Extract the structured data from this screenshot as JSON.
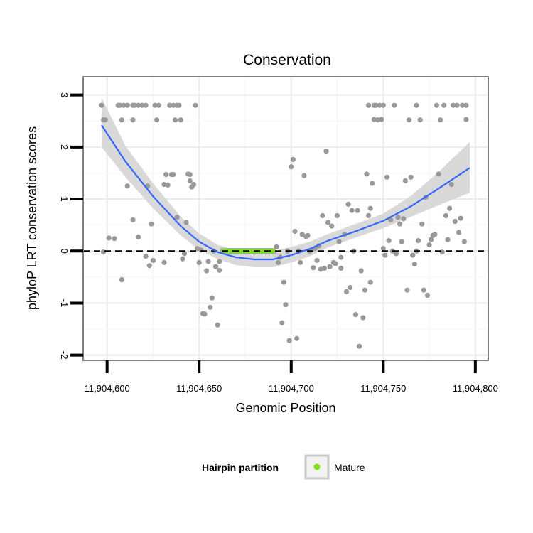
{
  "chart_data": {
    "type": "scatter",
    "title": "Conservation",
    "xlabel": "Genomic Position",
    "ylabel": "phyloP LRT conservation scores",
    "xlim": [
      11904587,
      11904807
    ],
    "ylim": [
      -2.1,
      3.35
    ],
    "x_ticks": [
      11904600,
      11904650,
      11904700,
      11904750,
      11904800
    ],
    "x_tick_labels": [
      "11,904,600",
      "11,904,650",
      "11,904,700",
      "11,904,750",
      "11,904,800"
    ],
    "y_ticks": [
      -2,
      -1,
      0,
      1,
      2,
      3
    ],
    "y_tick_labels": [
      "-2",
      "-1",
      "0",
      "1",
      "2",
      "3"
    ],
    "reference_line": {
      "y": 0,
      "style": "dashed",
      "color": "#000000"
    },
    "colors": {
      "points": "#999999",
      "smooth_line": "#3366ff",
      "confidence_band": "#d9d9d9",
      "mature": "#7fe01a",
      "panel_border": "#7f7f7f",
      "grid": "#ebebeb"
    },
    "points": [
      [
        11904597,
        2.8
      ],
      [
        11904598,
        2.52
      ],
      [
        11904599,
        2.52
      ],
      [
        11904598,
        -0.02
      ],
      [
        11904601,
        0.25
      ],
      [
        11904604,
        0.24
      ],
      [
        11904606,
        2.8
      ],
      [
        11904607,
        2.8
      ],
      [
        11904608,
        2.52
      ],
      [
        11904608,
        -0.55
      ],
      [
        11904609,
        2.8
      ],
      [
        11904611,
        2.8
      ],
      [
        11904611,
        1.25
      ],
      [
        11904614,
        2.8
      ],
      [
        11904614,
        2.52
      ],
      [
        11904614,
        0.6
      ],
      [
        11904615,
        2.8
      ],
      [
        11904617,
        2.8
      ],
      [
        11904617,
        0.27
      ],
      [
        11904619,
        2.8
      ],
      [
        11904621,
        2.8
      ],
      [
        11904621,
        -0.1
      ],
      [
        11904622,
        1.25
      ],
      [
        11904623,
        -0.28
      ],
      [
        11904624,
        0.52
      ],
      [
        11904625,
        -0.18
      ],
      [
        11904626,
        2.8
      ],
      [
        11904627,
        2.52
      ],
      [
        11904628,
        2.8
      ],
      [
        11904631,
        1.28
      ],
      [
        11904631,
        -0.22
      ],
      [
        11904632,
        1.47
      ],
      [
        11904633,
        1.27
      ],
      [
        11904634,
        2.8
      ],
      [
        11904635,
        1.47
      ],
      [
        11904636,
        1.47
      ],
      [
        11904636,
        2.8
      ],
      [
        11904637,
        2.52
      ],
      [
        11904638,
        2.8
      ],
      [
        11904638,
        0.65
      ],
      [
        11904639,
        2.8
      ],
      [
        11904640,
        2.52
      ],
      [
        11904641,
        -0.15
      ],
      [
        11904642,
        -0.05
      ],
      [
        11904643,
        0.55
      ],
      [
        11904644,
        1.48
      ],
      [
        11904645,
        1.47
      ],
      [
        11904645,
        1.35
      ],
      [
        11904646,
        1.23
      ],
      [
        11904647,
        1.28
      ],
      [
        11904648,
        2.8
      ],
      [
        11904649,
        0.05
      ],
      [
        11904650,
        -0.22
      ],
      [
        11904651,
        0.02
      ],
      [
        11904652,
        -1.2
      ],
      [
        11904653,
        -1.21
      ],
      [
        11904654,
        -0.38
      ],
      [
        11904655,
        -0.2
      ],
      [
        11904656,
        -1.08
      ],
      [
        11904657,
        -0.9
      ],
      [
        11904658,
        0.0
      ],
      [
        11904659,
        -0.3
      ],
      [
        11904660,
        -1.42
      ],
      [
        11904661,
        -0.2
      ],
      [
        11904661,
        -0.37
      ],
      [
        11904692,
        0.08
      ],
      [
        11904693,
        -0.22
      ],
      [
        11904694,
        -0.12
      ],
      [
        11904695,
        -1.38
      ],
      [
        11904696,
        -0.6
      ],
      [
        11904697,
        -1.03
      ],
      [
        11904698,
        0.0
      ],
      [
        11904699,
        -1.72
      ],
      [
        11904700,
        1.62
      ],
      [
        11904701,
        1.76
      ],
      [
        11904702,
        0.38
      ],
      [
        11904703,
        -1.68
      ],
      [
        11904704,
        0.0
      ],
      [
        11904705,
        -0.22
      ],
      [
        11904706,
        0.32
      ],
      [
        11904707,
        1.45
      ],
      [
        11904708,
        0.28
      ],
      [
        11904709,
        0.3
      ],
      [
        11904710,
        0.0
      ],
      [
        11904711,
        0.02
      ],
      [
        11904712,
        -0.32
      ],
      [
        11904713,
        0.05
      ],
      [
        11904714,
        -0.18
      ],
      [
        11904715,
        0.1
      ],
      [
        11904716,
        -0.35
      ],
      [
        11904717,
        0.68
      ],
      [
        11904718,
        -0.33
      ],
      [
        11904719,
        1.92
      ],
      [
        11904720,
        0.55
      ],
      [
        11904721,
        -0.3
      ],
      [
        11904722,
        0.48
      ],
      [
        11904723,
        -0.22
      ],
      [
        11904724,
        -0.24
      ],
      [
        11904725,
        0.68
      ],
      [
        11904726,
        0.18
      ],
      [
        11904727,
        -0.33
      ],
      [
        11904727,
        -0.12
      ],
      [
        11904729,
        0.32
      ],
      [
        11904730,
        -0.78
      ],
      [
        11904731,
        0.9
      ],
      [
        11904732,
        -0.7
      ],
      [
        11904733,
        0.78
      ],
      [
        11904734,
        0.0
      ],
      [
        11904735,
        -1.22
      ],
      [
        11904736,
        0.78
      ],
      [
        11904737,
        -1.83
      ],
      [
        11904738,
        -0.38
      ],
      [
        11904739,
        -1.28
      ],
      [
        11904740,
        -0.75
      ],
      [
        11904741,
        1.48
      ],
      [
        11904742,
        2.8
      ],
      [
        11904742,
        0.68
      ],
      [
        11904743,
        0.82
      ],
      [
        11904743,
        -0.6
      ],
      [
        11904744,
        1.3
      ],
      [
        11904745,
        2.8
      ],
      [
        11904745,
        2.53
      ],
      [
        11904746,
        2.8
      ],
      [
        11904747,
        2.52
      ],
      [
        11904748,
        2.8
      ],
      [
        11904749,
        2.53
      ],
      [
        11904750,
        2.8
      ],
      [
        11904750,
        0.05
      ],
      [
        11904751,
        -0.08
      ],
      [
        11904752,
        1.42
      ],
      [
        11904753,
        0.2
      ],
      [
        11904754,
        0.6
      ],
      [
        11904755,
        0.0
      ],
      [
        11904756,
        2.8
      ],
      [
        11904757,
        -0.05
      ],
      [
        11904758,
        0.65
      ],
      [
        11904759,
        0.52
      ],
      [
        11904760,
        0.18
      ],
      [
        11904761,
        0.62
      ],
      [
        11904762,
        1.35
      ],
      [
        11904763,
        -0.75
      ],
      [
        11904764,
        2.52
      ],
      [
        11904765,
        1.42
      ],
      [
        11904766,
        -0.08
      ],
      [
        11904767,
        -0.25
      ],
      [
        11904768,
        2.8
      ],
      [
        11904768,
        0.0
      ],
      [
        11904769,
        0.2
      ],
      [
        11904770,
        2.52
      ],
      [
        11904771,
        0.52
      ],
      [
        11904772,
        -0.75
      ],
      [
        11904773,
        1.03
      ],
      [
        11904774,
        -0.85
      ],
      [
        11904775,
        0.12
      ],
      [
        11904776,
        0.22
      ],
      [
        11904777,
        0.3
      ],
      [
        11904778,
        0.32
      ],
      [
        11904779,
        2.8
      ],
      [
        11904780,
        1.48
      ],
      [
        11904781,
        2.52
      ],
      [
        11904782,
        -0.02
      ],
      [
        11904783,
        2.8
      ],
      [
        11904784,
        0.68
      ],
      [
        11904785,
        0.22
      ],
      [
        11904786,
        0.82
      ],
      [
        11904787,
        1.28
      ],
      [
        11904788,
        2.8
      ],
      [
        11904789,
        0.57
      ],
      [
        11904790,
        2.8
      ],
      [
        11904791,
        0.36
      ],
      [
        11904792,
        0.63
      ],
      [
        11904793,
        2.8
      ],
      [
        11904794,
        0.18
      ],
      [
        11904795,
        2.8
      ],
      [
        11904795,
        2.53
      ]
    ],
    "mature_points": [
      [
        11904663,
        0.0
      ],
      [
        11904664,
        0.0
      ],
      [
        11904665,
        0.0
      ],
      [
        11904666,
        0.0
      ],
      [
        11904667,
        0.0
      ],
      [
        11904668,
        0.0
      ],
      [
        11904669,
        0.0
      ],
      [
        11904670,
        0.0
      ],
      [
        11904671,
        0.0
      ],
      [
        11904672,
        0.0
      ],
      [
        11904673,
        0.0
      ],
      [
        11904674,
        0.0
      ],
      [
        11904675,
        0.0
      ],
      [
        11904676,
        0.0
      ],
      [
        11904677,
        0.0
      ],
      [
        11904678,
        0.0
      ],
      [
        11904679,
        0.0
      ],
      [
        11904680,
        0.0
      ],
      [
        11904681,
        0.0
      ],
      [
        11904682,
        0.0
      ],
      [
        11904683,
        0.0
      ],
      [
        11904684,
        0.0
      ],
      [
        11904685,
        0.0
      ],
      [
        11904686,
        0.0
      ],
      [
        11904687,
        0.0
      ],
      [
        11904688,
        0.0
      ],
      [
        11904689,
        0.0
      ],
      [
        11904690,
        0.0
      ]
    ],
    "smooth_curve": [
      [
        11904597,
        2.42
      ],
      [
        11904610,
        1.72
      ],
      [
        11904625,
        1.05
      ],
      [
        11904640,
        0.48
      ],
      [
        11904650,
        0.18
      ],
      [
        11904660,
        -0.02
      ],
      [
        11904670,
        -0.12
      ],
      [
        11904680,
        -0.16
      ],
      [
        11904690,
        -0.16
      ],
      [
        11904700,
        -0.08
      ],
      [
        11904710,
        0.04
      ],
      [
        11904720,
        0.2
      ],
      [
        11904735,
        0.38
      ],
      [
        11904750,
        0.58
      ],
      [
        11904765,
        0.86
      ],
      [
        11904780,
        1.2
      ],
      [
        11904797,
        1.6
      ]
    ],
    "confidence_band": [
      [
        11904597,
        2.0,
        2.95
      ],
      [
        11904610,
        1.42,
        2.02
      ],
      [
        11904625,
        0.82,
        1.3
      ],
      [
        11904640,
        0.3,
        0.66
      ],
      [
        11904650,
        0.02,
        0.34
      ],
      [
        11904660,
        -0.15,
        0.12
      ],
      [
        11904670,
        -0.27,
        0.02
      ],
      [
        11904680,
        -0.31,
        -0.01
      ],
      [
        11904690,
        -0.31,
        0.0
      ],
      [
        11904700,
        -0.22,
        0.08
      ],
      [
        11904710,
        -0.1,
        0.18
      ],
      [
        11904720,
        0.07,
        0.33
      ],
      [
        11904735,
        0.26,
        0.52
      ],
      [
        11904750,
        0.44,
        0.72
      ],
      [
        11904765,
        0.66,
        1.06
      ],
      [
        11904780,
        0.88,
        1.52
      ],
      [
        11904797,
        1.12,
        2.1
      ]
    ],
    "legend": {
      "title": "Hairpin partition",
      "entries": [
        {
          "label": "Mature",
          "color": "#7fe01a"
        }
      ],
      "position": "bottom"
    }
  }
}
